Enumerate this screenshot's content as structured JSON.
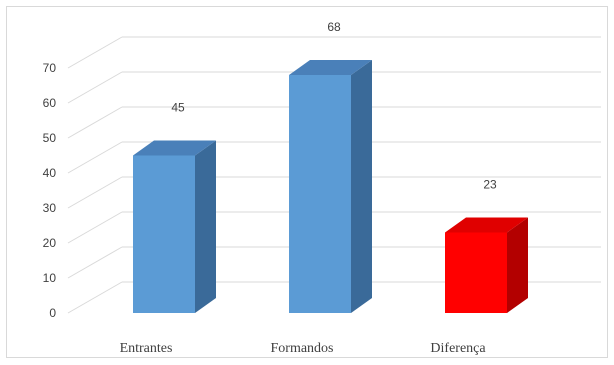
{
  "chart_data": {
    "type": "bar",
    "categories": [
      "Entrantes",
      "Formandos",
      "Diferença"
    ],
    "values": [
      45,
      68,
      23
    ],
    "data_labels": [
      "45",
      "68",
      "23"
    ],
    "ylim": [
      0,
      70
    ],
    "yticks": [
      "0",
      "10",
      "20",
      "30",
      "40",
      "50",
      "60",
      "70"
    ],
    "grid": true,
    "legend": "none",
    "three_d": true,
    "colors": {
      "front": [
        "#5b9bd5",
        "#5b9bd5",
        "#ff0000"
      ],
      "top": [
        "#4a80b9",
        "#4a80b9",
        "#e00000"
      ],
      "side": [
        "#3a6a99",
        "#3a6a99",
        "#b30000"
      ],
      "grid": "#d9d9d9",
      "frame": "#d9d9d9"
    }
  }
}
